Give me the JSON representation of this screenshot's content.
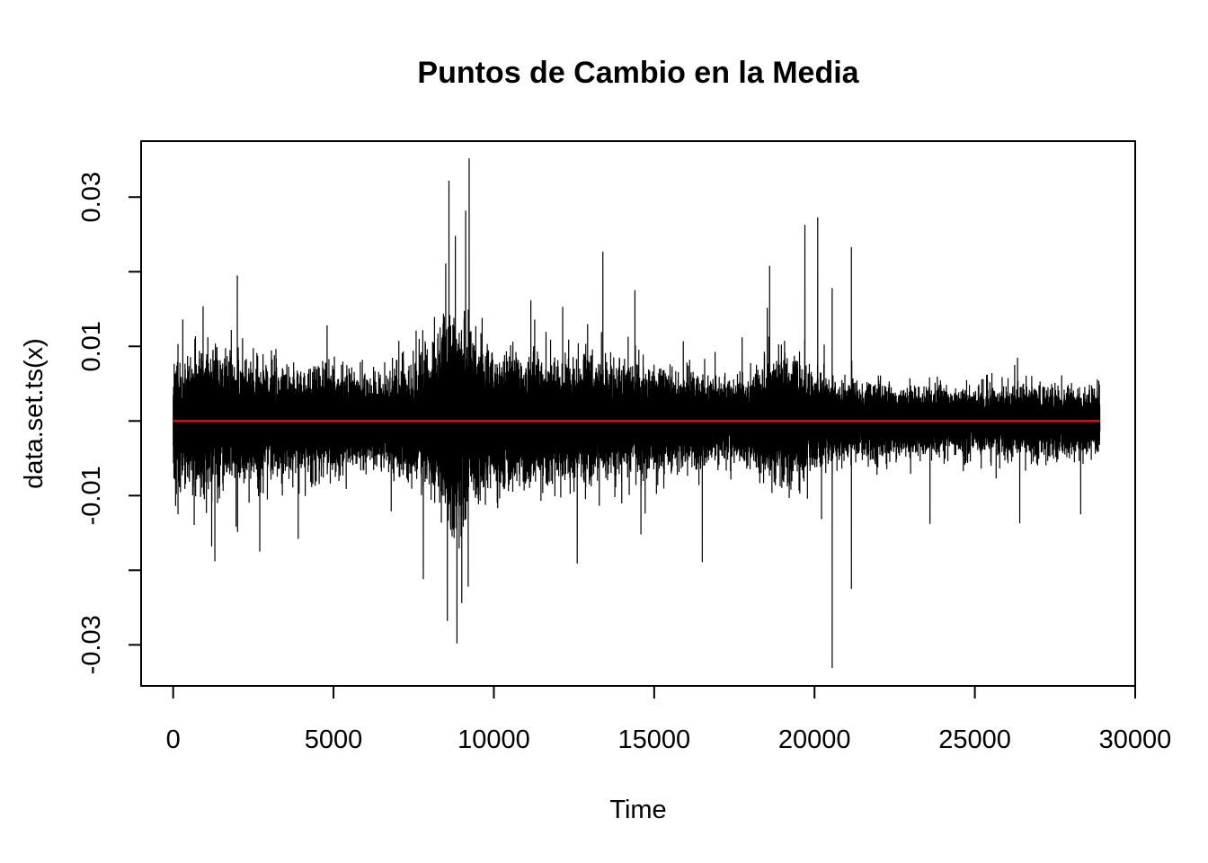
{
  "chart_data": {
    "type": "line",
    "title": "Puntos de Cambio en la Media",
    "xlabel": "Time",
    "ylabel": "data.set.ts(x)",
    "xlim": [
      -1000,
      30000
    ],
    "ylim": [
      -0.0355,
      0.0375
    ],
    "x_ticks": [
      0,
      5000,
      10000,
      15000,
      20000,
      25000,
      30000
    ],
    "x_tick_labels": [
      "0",
      "5000",
      "10000",
      "15000",
      "20000",
      "25000",
      "30000"
    ],
    "y_ticks": [
      -0.03,
      -0.02,
      -0.01,
      0,
      0.01,
      0.02,
      0.03
    ],
    "y_tick_labels": [
      "-0.03",
      "",
      "-0.01",
      "",
      "0.01",
      "",
      "0.03"
    ],
    "grid": false,
    "legend": "none",
    "series": [
      {
        "color": "#000000",
        "x_range": [
          1,
          28900
        ],
        "approx_n_points": 28900,
        "volatility_envelope": {
          "x": [
            0,
            1000,
            2000,
            3000,
            4000,
            5000,
            6000,
            7000,
            7500,
            8000,
            8500,
            8800,
            9000,
            9500,
            10000,
            11000,
            12000,
            13000,
            14000,
            15000,
            16000,
            17000,
            18000,
            19000,
            19500,
            20000,
            21000,
            22000,
            23000,
            24000,
            25000,
            26000,
            27000,
            28000,
            28900
          ],
          "sd": [
            0.0032,
            0.004,
            0.0036,
            0.0031,
            0.0029,
            0.0031,
            0.0024,
            0.0028,
            0.0033,
            0.0042,
            0.0058,
            0.0063,
            0.0055,
            0.0042,
            0.0036,
            0.0037,
            0.0034,
            0.0036,
            0.0031,
            0.003,
            0.0025,
            0.0022,
            0.0026,
            0.0035,
            0.0034,
            0.0028,
            0.0021,
            0.0021,
            0.002,
            0.0019,
            0.0018,
            0.002,
            0.0021,
            0.0019,
            0.0017
          ]
        },
        "spikes": [
          {
            "x": 150,
            "y": 0.0103
          },
          {
            "x": 300,
            "y": 0.0136
          },
          {
            "x": 150,
            "y": -0.0125
          },
          {
            "x": 1200,
            "y": -0.0168
          },
          {
            "x": 1300,
            "y": -0.0188
          },
          {
            "x": 2000,
            "y": 0.0195
          },
          {
            "x": 2700,
            "y": -0.0175
          },
          {
            "x": 3900,
            "y": -0.0158
          },
          {
            "x": 4800,
            "y": 0.0128
          },
          {
            "x": 7800,
            "y": -0.0212
          },
          {
            "x": 8600,
            "y": 0.0322
          },
          {
            "x": 8550,
            "y": -0.0268
          },
          {
            "x": 8800,
            "y": 0.0248
          },
          {
            "x": 8850,
            "y": -0.0298
          },
          {
            "x": 9000,
            "y": -0.0244
          },
          {
            "x": 9230,
            "y": 0.0352
          },
          {
            "x": 9200,
            "y": -0.0222
          },
          {
            "x": 12600,
            "y": -0.0191
          },
          {
            "x": 13400,
            "y": 0.0227
          },
          {
            "x": 14400,
            "y": 0.0175
          },
          {
            "x": 16500,
            "y": -0.0189
          },
          {
            "x": 18600,
            "y": 0.0208
          },
          {
            "x": 19700,
            "y": 0.0263
          },
          {
            "x": 20100,
            "y": 0.0273
          },
          {
            "x": 20550,
            "y": 0.0178
          },
          {
            "x": 20550,
            "y": -0.0331
          },
          {
            "x": 21150,
            "y": 0.0233
          },
          {
            "x": 21150,
            "y": -0.0225
          },
          {
            "x": 23600,
            "y": -0.0138
          },
          {
            "x": 26400,
            "y": -0.0137
          },
          {
            "x": 28300,
            "y": -0.0125
          }
        ]
      },
      {
        "color": "#ff0000",
        "x": [
          1,
          28900
        ],
        "y": [
          0,
          0
        ]
      }
    ]
  }
}
